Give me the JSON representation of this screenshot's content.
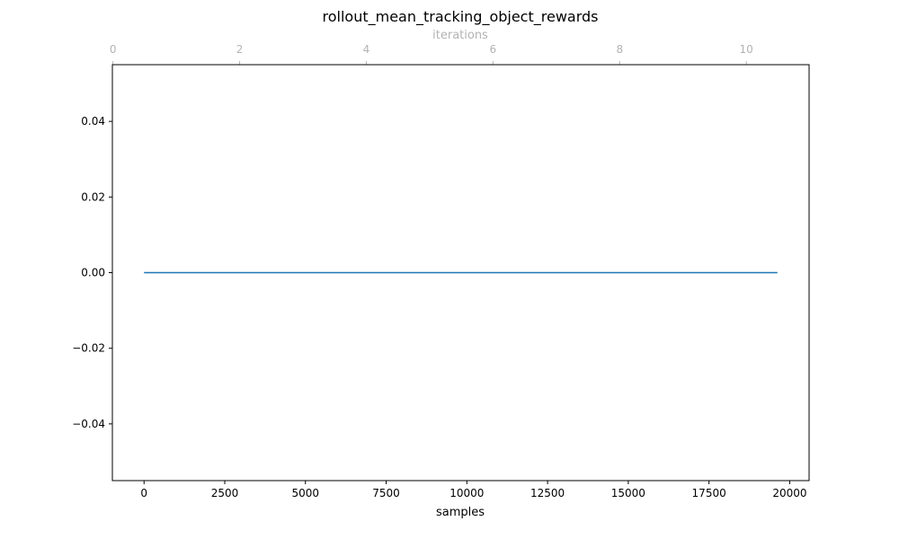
{
  "chart_data": {
    "type": "line",
    "title": "rollout_mean_tracking_object_rewards",
    "xlabel": "samples",
    "ylabel": "",
    "x2label": "iterations",
    "grid": false,
    "xlim": [
      -981,
      20601
    ],
    "ylim": [
      -0.055,
      0.055
    ],
    "x2lim": [
      -0.009,
      10.991
    ],
    "x_ticks": [
      0,
      2500,
      5000,
      7500,
      10000,
      12500,
      15000,
      17500,
      20000
    ],
    "x_tick_labels": [
      "0",
      "2500",
      "5000",
      "7500",
      "10000",
      "12500",
      "15000",
      "17500",
      "20000"
    ],
    "y_ticks": [
      -0.04,
      -0.02,
      0.0,
      0.02,
      0.04
    ],
    "y_tick_labels": [
      "−0.04",
      "−0.02",
      "0.00",
      "0.02",
      "0.04"
    ],
    "x2_ticks": [
      0,
      2,
      4,
      6,
      8,
      10
    ],
    "x2_tick_labels": [
      "0",
      "2",
      "4",
      "6",
      "8",
      "10"
    ],
    "series": [
      {
        "color": "#1f77b4",
        "x": [
          0,
          19620
        ],
        "y": [
          0.0,
          0.0
        ]
      }
    ],
    "colors": {
      "line": "#1f77b4",
      "top_axis": "#b3b3b3",
      "axes": "#000000"
    }
  }
}
